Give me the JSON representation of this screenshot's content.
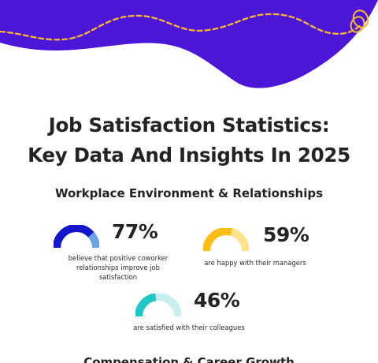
{
  "colors": {
    "brand": "#4c16d8",
    "accent_dash": "#f5b731",
    "gauge_blue": "#1515c9",
    "gauge_blue_light": "#6aa4e8",
    "gauge_yellow": "#ffbe16",
    "gauge_yellow_light": "#ffe28a",
    "gauge_teal": "#1fc6c6",
    "gauge_teal_light": "#c9eef0"
  },
  "header": {
    "title_line1": "Job Satisfaction Statistics:",
    "title_line2": "Key Data And Insights In 2025"
  },
  "sections": [
    {
      "title": "Workplace Environment & Relationships",
      "stats": [
        {
          "value": "77%",
          "fraction": 0.77,
          "caption_line1": "believe that positive coworker",
          "caption_line2": "relationships improve job",
          "caption_line3": "satisfaction"
        },
        {
          "value": "59%",
          "fraction": 0.59,
          "caption_line1": "are happy with their managers"
        },
        {
          "value": "46%",
          "fraction": 0.46,
          "caption_line1": "are satisfied with their colleagues"
        }
      ]
    },
    {
      "title": "Compensation & Career Growth"
    }
  ]
}
